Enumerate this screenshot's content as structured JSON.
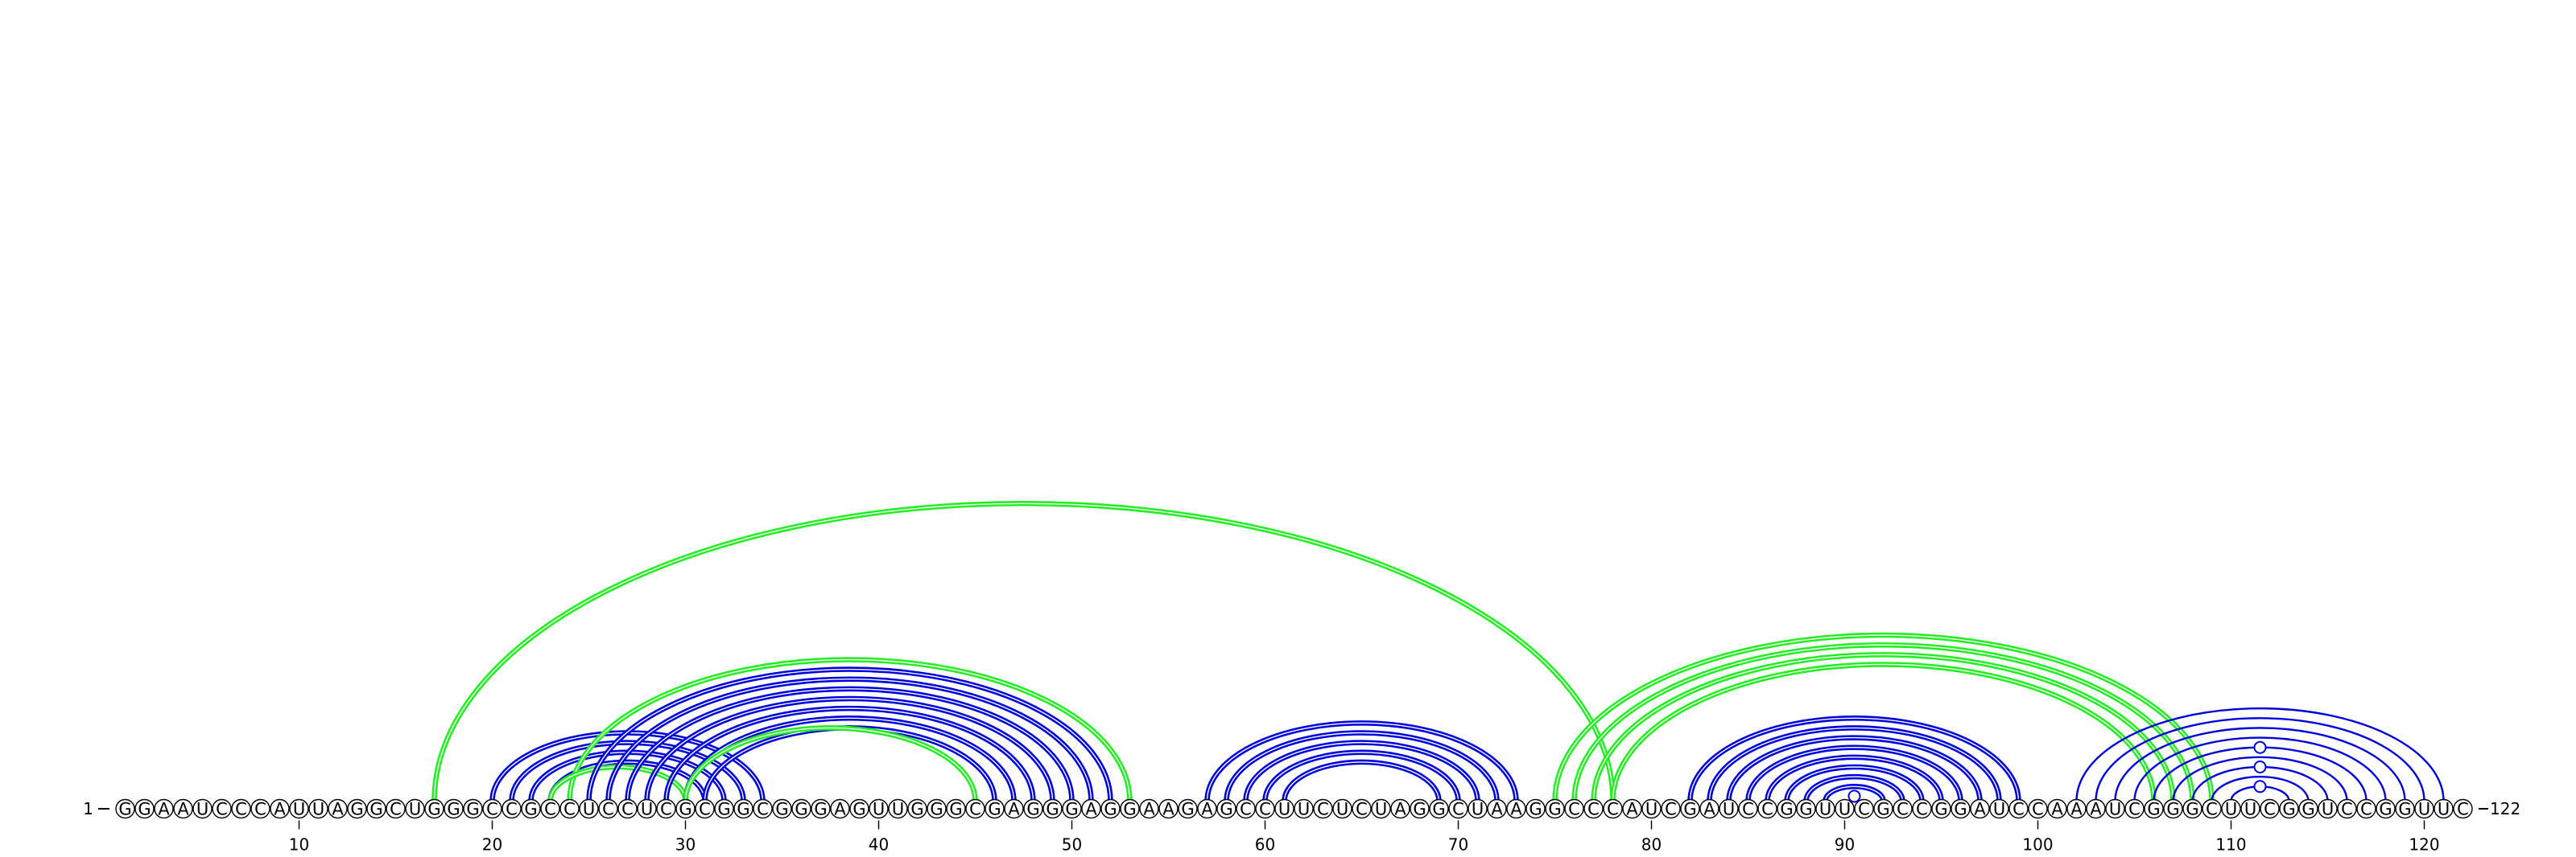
{
  "sequence": "GGAAUCCCAUUAGGCUGGGCCGCCUCCUCGCGGCGGGAGUUGGGCGAGGGAGGAAGAGCCUUCUCUAGGCUAAGGCCCAUCGAUCCGGUUCGCCGGAUCCAAAUCGGGCUUCGGUCCGGUUC",
  "start_label": "1",
  "end_label": "122",
  "tick_labels": [
    10,
    20,
    30,
    40,
    50,
    60,
    70,
    80,
    90,
    100,
    110,
    120
  ],
  "colors": {
    "blue": "#0000dd",
    "green": "#22ee22",
    "text": "#000000",
    "circle_fill": "#ffffff"
  },
  "arcs": [
    {
      "i": 17,
      "j": 78,
      "color": "green",
      "double": true
    },
    {
      "i": 20,
      "j": 34,
      "color": "blue",
      "double": true
    },
    {
      "i": 21,
      "j": 33,
      "color": "blue",
      "double": true
    },
    {
      "i": 22,
      "j": 32,
      "color": "blue",
      "double": true
    },
    {
      "i": 23,
      "j": 31,
      "color": "blue",
      "double": true
    },
    {
      "i": 24,
      "j": 53,
      "color": "green",
      "double": true
    },
    {
      "i": 23,
      "j": 30,
      "color": "green",
      "double": true
    },
    {
      "i": 25,
      "j": 52,
      "color": "blue",
      "double": true
    },
    {
      "i": 26,
      "j": 51,
      "color": "blue",
      "double": true
    },
    {
      "i": 27,
      "j": 50,
      "color": "blue",
      "double": true
    },
    {
      "i": 28,
      "j": 49,
      "color": "blue",
      "double": true
    },
    {
      "i": 29,
      "j": 48,
      "color": "blue",
      "double": true
    },
    {
      "i": 30,
      "j": 47,
      "color": "blue",
      "double": true
    },
    {
      "i": 31,
      "j": 46,
      "color": "blue",
      "double": true
    },
    {
      "i": 30,
      "j": 45,
      "color": "green",
      "double": true
    },
    {
      "i": 57,
      "j": 73,
      "color": "blue",
      "double": true
    },
    {
      "i": 58,
      "j": 72,
      "color": "blue",
      "double": true
    },
    {
      "i": 59,
      "j": 71,
      "color": "blue",
      "double": true
    },
    {
      "i": 60,
      "j": 70,
      "color": "blue",
      "double": true
    },
    {
      "i": 61,
      "j": 69,
      "color": "blue",
      "double": true
    },
    {
      "i": 75,
      "j": 109,
      "color": "green",
      "double": true
    },
    {
      "i": 76,
      "j": 108,
      "color": "green",
      "double": true
    },
    {
      "i": 77,
      "j": 107,
      "color": "green",
      "double": true
    },
    {
      "i": 78,
      "j": 106,
      "color": "green",
      "double": true
    },
    {
      "i": 82,
      "j": 99,
      "color": "blue",
      "double": true
    },
    {
      "i": 83,
      "j": 98,
      "color": "blue",
      "double": true
    },
    {
      "i": 84,
      "j": 97,
      "color": "blue",
      "double": true
    },
    {
      "i": 85,
      "j": 96,
      "color": "blue",
      "double": true
    },
    {
      "i": 86,
      "j": 95,
      "color": "blue",
      "double": true
    },
    {
      "i": 87,
      "j": 94,
      "color": "blue",
      "double": true
    },
    {
      "i": 88,
      "j": 93,
      "color": "blue",
      "double": true
    },
    {
      "i": 89,
      "j": 92,
      "color": "blue",
      "double": true
    },
    {
      "i": 102,
      "j": 121,
      "color": "blue",
      "double": false
    },
    {
      "i": 103,
      "j": 120,
      "color": "blue",
      "double": false
    },
    {
      "i": 104,
      "j": 119,
      "color": "blue",
      "double": false
    },
    {
      "i": 105,
      "j": 118,
      "color": "blue",
      "double": false
    },
    {
      "i": 106,
      "j": 117,
      "color": "blue",
      "double": false
    },
    {
      "i": 107,
      "j": 116,
      "color": "blue",
      "double": false
    },
    {
      "i": 108,
      "j": 115,
      "color": "blue",
      "double": false
    },
    {
      "i": 109,
      "j": 114,
      "color": "blue",
      "double": false
    },
    {
      "i": 110,
      "j": 113,
      "color": "blue",
      "double": false
    }
  ],
  "arc_markers": [
    {
      "i": 90,
      "j": 91
    },
    {
      "i": 106,
      "j": 117
    },
    {
      "i": 108,
      "j": 115
    },
    {
      "i": 110,
      "j": 113
    }
  ]
}
